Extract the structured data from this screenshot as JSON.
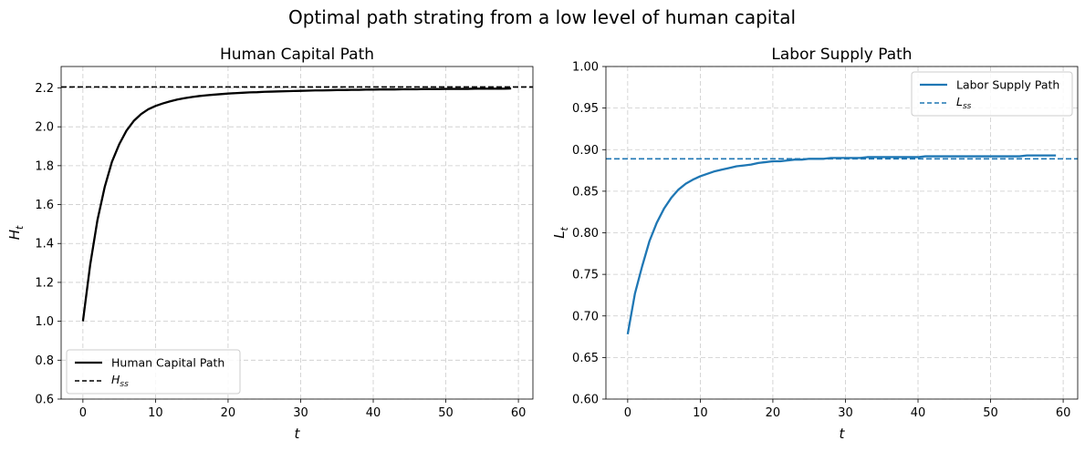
{
  "figure": {
    "suptitle": "Optimal path strating from a low level of human capital"
  },
  "chart_data": [
    {
      "type": "line",
      "title": "Human Capital Path",
      "xlabel": "t",
      "ylabel": {
        "main": "H",
        "sub": "t"
      },
      "xlim": [
        -3,
        62
      ],
      "ylim": [
        0.6,
        2.31
      ],
      "xticks": [
        0,
        10,
        20,
        30,
        40,
        50,
        60
      ],
      "yticks": [
        0.6,
        0.8,
        1.0,
        1.2,
        1.4,
        1.6,
        1.8,
        2.0,
        2.2
      ],
      "ytick_decimals": 1,
      "grid": true,
      "legend_position": "lower-left",
      "series": [
        {
          "name": "Human Capital Path",
          "color": "#000000",
          "style": "solid",
          "x0": 0,
          "values": [
            1.0,
            1.29,
            1.52,
            1.69,
            1.82,
            1.91,
            1.98,
            2.03,
            2.065,
            2.09,
            2.107,
            2.12,
            2.131,
            2.14,
            2.147,
            2.153,
            2.158,
            2.162,
            2.165,
            2.168,
            2.171,
            2.173,
            2.175,
            2.177,
            2.178,
            2.18,
            2.181,
            2.182,
            2.183,
            2.184,
            2.185,
            2.186,
            2.187,
            2.187,
            2.188,
            2.189,
            2.189,
            2.19,
            2.19,
            2.191,
            2.191,
            2.192,
            2.192,
            2.192,
            2.193,
            2.193,
            2.193,
            2.194,
            2.194,
            2.194,
            2.195,
            2.195,
            2.195,
            2.195,
            2.196,
            2.196,
            2.196,
            2.196,
            2.196,
            2.197
          ]
        }
      ],
      "reference_line": {
        "name": {
          "main": "H",
          "sub": "ss"
        },
        "value": 2.205,
        "color": "#000000",
        "style": "dashed"
      }
    },
    {
      "type": "line",
      "title": "Labor Supply Path",
      "xlabel": "t",
      "ylabel": {
        "main": "L",
        "sub": "t"
      },
      "xlim": [
        -3,
        62
      ],
      "ylim": [
        0.6,
        1.0
      ],
      "xticks": [
        0,
        10,
        20,
        30,
        40,
        50,
        60
      ],
      "yticks": [
        0.6,
        0.65,
        0.7,
        0.75,
        0.8,
        0.85,
        0.9,
        0.95,
        1.0
      ],
      "ytick_decimals": 2,
      "grid": true,
      "legend_position": "upper-right",
      "series": [
        {
          "name": "Labor Supply Path",
          "color": "#1f77b4",
          "style": "solid",
          "x0": 0,
          "values": [
            0.678,
            0.727,
            0.76,
            0.79,
            0.812,
            0.829,
            0.842,
            0.852,
            0.859,
            0.864,
            0.868,
            0.871,
            0.874,
            0.876,
            0.878,
            0.88,
            0.881,
            0.882,
            0.884,
            0.885,
            0.886,
            0.886,
            0.887,
            0.888,
            0.888,
            0.889,
            0.889,
            0.889,
            0.89,
            0.89,
            0.89,
            0.89,
            0.89,
            0.891,
            0.891,
            0.891,
            0.891,
            0.891,
            0.891,
            0.891,
            0.891,
            0.892,
            0.892,
            0.892,
            0.892,
            0.892,
            0.892,
            0.892,
            0.892,
            0.892,
            0.892,
            0.892,
            0.892,
            0.892,
            0.892,
            0.893,
            0.893,
            0.893,
            0.893,
            0.893
          ]
        }
      ],
      "reference_line": {
        "name": {
          "main": "L",
          "sub": "ss"
        },
        "value": 0.889,
        "color": "#1f77b4",
        "style": "dashed"
      }
    }
  ]
}
